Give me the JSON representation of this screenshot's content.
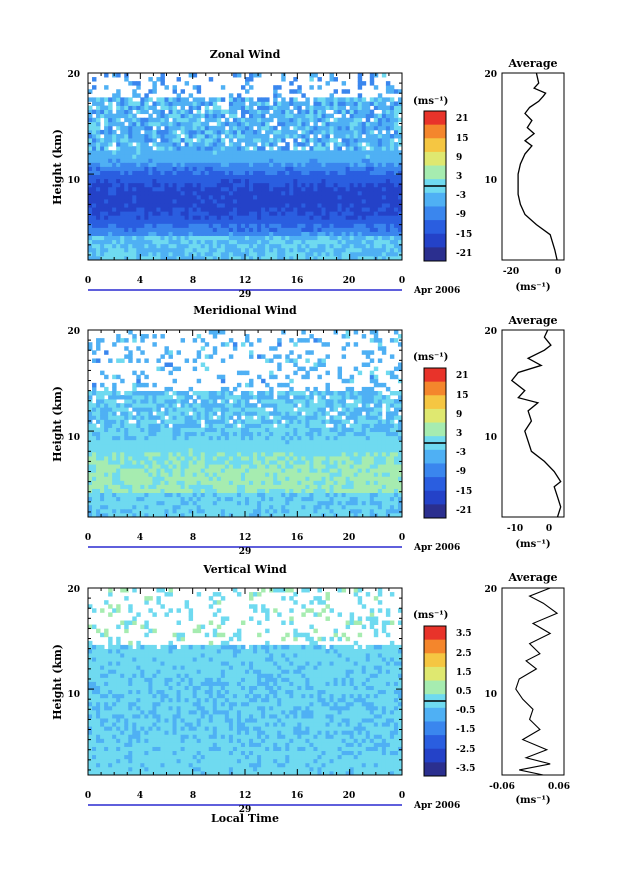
{
  "figure": {
    "xlabel": "Local Time",
    "date_label": "Apr 2006",
    "day_label": "29",
    "unit_label": "(ms⁻¹)",
    "avg_xlabel": "(ms⁻¹)"
  },
  "colors": {
    "colormap": [
      "#2b2f8f",
      "#2442c8",
      "#2a5ee0",
      "#3a86ee",
      "#4fb0f4",
      "#6fdaf0",
      "#a6ecb0",
      "#dfe870",
      "#f5c642",
      "#f4862c",
      "#e8332a"
    ]
  },
  "chart_data": [
    {
      "type": "heatmap",
      "title": "Zonal Wind",
      "xlabel": "Local Time",
      "ylabel": "Height (km)",
      "x_ticks": [
        "0",
        "4",
        "8",
        "12",
        "16",
        "20",
        "0"
      ],
      "y_ticks": [
        "10",
        "20"
      ],
      "xlim": [
        0,
        24
      ],
      "ylim": [
        1.5,
        20
      ],
      "colorbar": {
        "unit": "(ms⁻¹)",
        "ticks": [
          "21",
          "15",
          "9",
          "3",
          "-3",
          "-9",
          "-15",
          "-21"
        ],
        "range": [
          -24,
          24
        ]
      },
      "pattern": {
        "low_cut": 4.0,
        "core_h": 7.5,
        "core_val": -17,
        "edge_val": -4,
        "top_h": 12.5,
        "sparse_from": 17.5,
        "top_val": -6,
        "jitter": 4
      },
      "average": {
        "title": "Average",
        "x_ticks": [
          "-20",
          "0"
        ],
        "xlim": [
          -25,
          2
        ],
        "y_ticks": [
          "10",
          "20"
        ],
        "profile": [
          [
            1.5,
            -1
          ],
          [
            2.5,
            -2
          ],
          [
            4,
            -4
          ],
          [
            5,
            -10
          ],
          [
            6,
            -15
          ],
          [
            7,
            -17
          ],
          [
            8,
            -18
          ],
          [
            9,
            -18
          ],
          [
            10,
            -18
          ],
          [
            11,
            -17
          ],
          [
            12,
            -15
          ],
          [
            12.8,
            -12
          ],
          [
            13.3,
            -15
          ],
          [
            14,
            -11
          ],
          [
            14.6,
            -14
          ],
          [
            15.3,
            -12
          ],
          [
            16,
            -15
          ],
          [
            16.6,
            -13
          ],
          [
            17.2,
            -9
          ],
          [
            17.7,
            -7
          ],
          [
            18,
            -6
          ],
          [
            18.5,
            -11
          ],
          [
            19,
            -9
          ],
          [
            20,
            -10
          ]
        ]
      }
    },
    {
      "type": "heatmap",
      "title": "Meridional Wind",
      "xlabel": "Local Time",
      "ylabel": "Height (km)",
      "x_ticks": [
        "0",
        "4",
        "8",
        "12",
        "16",
        "20",
        "0"
      ],
      "y_ticks": [
        "10",
        "20"
      ],
      "xlim": [
        0,
        24
      ],
      "ylim": [
        1.5,
        20
      ],
      "colorbar": {
        "unit": "(ms⁻¹)",
        "ticks": [
          "21",
          "15",
          "9",
          "3",
          "-3",
          "-9",
          "-15",
          "-21"
        ],
        "range": [
          -24,
          24
        ]
      },
      "pattern": {
        "low_cut": 4.0,
        "core_h": 5.5,
        "core_val": 3,
        "edge_val": -2,
        "top_h": 10.5,
        "sparse_from": 14.0,
        "top_val": -4,
        "jitter": 3
      },
      "average": {
        "title": "Average",
        "x_ticks": [
          "-10",
          "0"
        ],
        "xlim": [
          -14,
          5
        ],
        "y_ticks": [
          "10",
          "20"
        ],
        "profile": [
          [
            1.5,
            3
          ],
          [
            2.5,
            4
          ],
          [
            3.5,
            3
          ],
          [
            4.5,
            2
          ],
          [
            5,
            4
          ],
          [
            6,
            2
          ],
          [
            7,
            -1
          ],
          [
            8,
            -5
          ],
          [
            9,
            -6
          ],
          [
            10,
            -7
          ],
          [
            11,
            -5
          ],
          [
            12,
            -6
          ],
          [
            12.8,
            -3
          ],
          [
            13.3,
            -9
          ],
          [
            14,
            -7
          ],
          [
            15,
            -11
          ],
          [
            15.8,
            -9
          ],
          [
            16.5,
            -2
          ],
          [
            17.2,
            -6
          ],
          [
            18,
            -1
          ],
          [
            18.5,
            1
          ],
          [
            19.3,
            -1
          ],
          [
            20,
            0
          ]
        ]
      }
    },
    {
      "type": "heatmap",
      "title": "Vertical Wind",
      "xlabel": "Local Time",
      "ylabel": "Height (km)",
      "x_ticks": [
        "0",
        "4",
        "8",
        "12",
        "16",
        "20",
        "0"
      ],
      "y_ticks": [
        "10",
        "20"
      ],
      "xlim": [
        0,
        24
      ],
      "ylim": [
        1.5,
        20
      ],
      "colorbar": {
        "unit": "(ms⁻¹)",
        "ticks": [
          "3.5",
          "2.5",
          "1.5",
          "0.5",
          "-0.5",
          "-1.5",
          "-2.5",
          "-3.5"
        ],
        "range": [
          -4,
          4
        ]
      },
      "pattern": {
        "low_cut": 1.5,
        "core_h": 8,
        "core_val": -0.3,
        "edge_val": -0.2,
        "top_h": 14,
        "sparse_from": 14.5,
        "top_val": 0.2,
        "jitter": 0.5
      },
      "average": {
        "title": "Average",
        "x_ticks": [
          "-0.06",
          "0.06"
        ],
        "xlim": [
          -0.09,
          0.09
        ],
        "y_ticks": [
          "10",
          "20"
        ],
        "profile": [
          [
            1.5,
            0.03
          ],
          [
            2,
            -0.04
          ],
          [
            2.6,
            0.05
          ],
          [
            3.2,
            -0.02
          ],
          [
            4,
            0.04
          ],
          [
            5,
            -0.03
          ],
          [
            6,
            0.02
          ],
          [
            7,
            -0.01
          ],
          [
            8,
            0.0
          ],
          [
            9,
            -0.03
          ],
          [
            10,
            -0.05
          ],
          [
            11,
            -0.04
          ],
          [
            12,
            0.01
          ],
          [
            12.8,
            -0.02
          ],
          [
            13.5,
            0.02
          ],
          [
            14.5,
            -0.01
          ],
          [
            15.5,
            0.05
          ],
          [
            16.5,
            0.0
          ],
          [
            17.5,
            0.07
          ],
          [
            18.5,
            0.03
          ],
          [
            19.2,
            -0.01
          ],
          [
            20,
            0.05
          ]
        ]
      }
    }
  ]
}
